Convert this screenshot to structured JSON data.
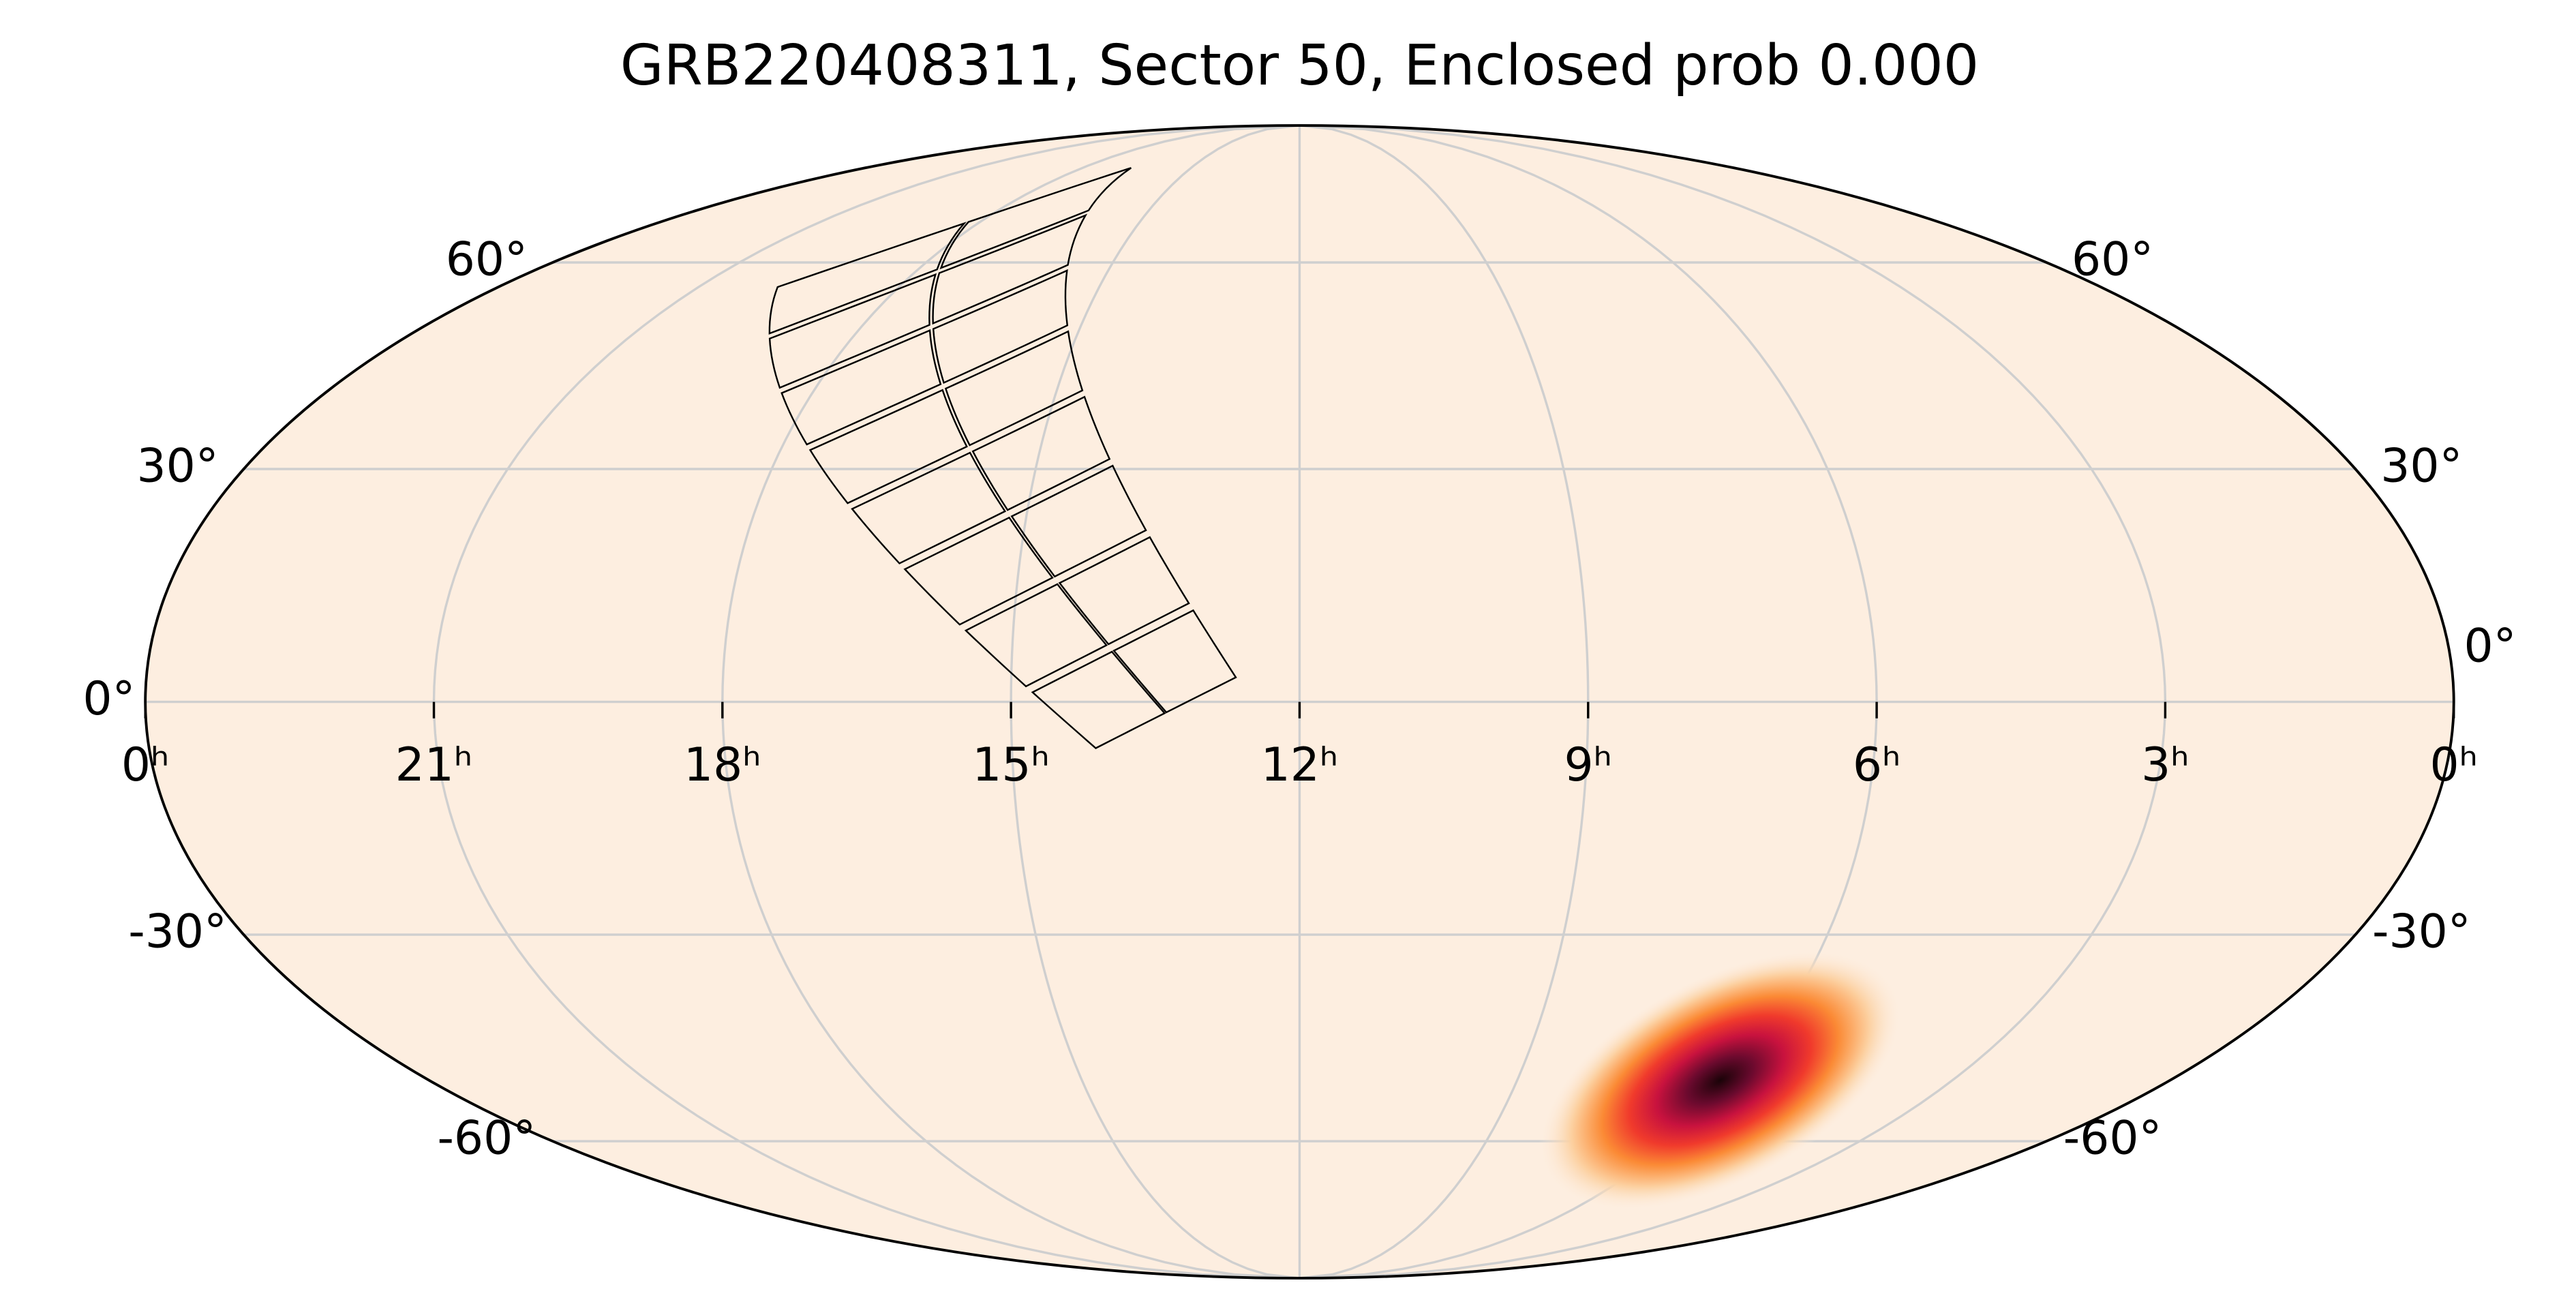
{
  "chart_data": {
    "type": "skymap",
    "projection": "mollweide",
    "title": "GRB220408311, Sector 50, Enclosed prob 0.000",
    "background": "#fdeee0",
    "xlim": [
      24,
      0
    ],
    "xticks": [
      {
        "value": 24,
        "label": "0ʰ"
      },
      {
        "value": 21,
        "label": "21ʰ"
      },
      {
        "value": 18,
        "label": "18ʰ"
      },
      {
        "value": 15,
        "label": "15ʰ"
      },
      {
        "value": 12,
        "label": "12ʰ"
      },
      {
        "value": 9,
        "label": "9ʰ"
      },
      {
        "value": 6,
        "label": "6ʰ"
      },
      {
        "value": 3,
        "label": "3ʰ"
      },
      {
        "value": 0,
        "label": "0ʰ"
      }
    ],
    "ylim": [
      -90,
      90
    ],
    "yticks": [
      {
        "value": -60,
        "label": "-60°"
      },
      {
        "value": -30,
        "label": "-30°"
      },
      {
        "value": 0,
        "label": "0°"
      },
      {
        "value": 30,
        "label": "30°"
      },
      {
        "value": 60,
        "label": "60°"
      }
    ],
    "grid": true,
    "localization_peak": {
      "ra": 6.2,
      "dec": -50.5
    },
    "footprint": {
      "corners": [
        [
          14.1,
          -6.3
        ],
        [
          12.63,
          2.7
        ],
        [
          16.66,
          78.1
        ],
        [
          19.87,
          56.3
        ]
      ],
      "rows": 8,
      "cols": 2
    }
  }
}
